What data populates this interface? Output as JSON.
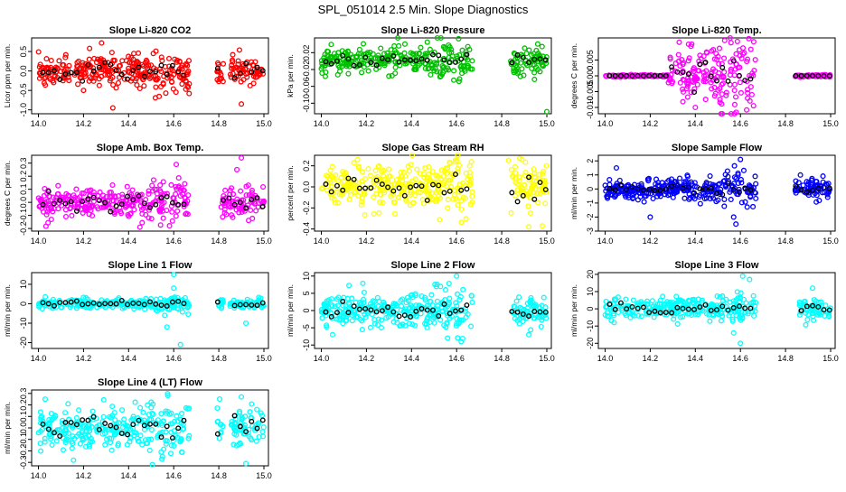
{
  "title": "SPL_051014  2.5 Min. Slope Diagnostics",
  "colors": {
    "red": "#ff0000",
    "green": "#00c000",
    "magenta": "#ff00ff",
    "yellow": "#ffff00",
    "blue": "#0000ff",
    "cyan": "#00ffff",
    "black": "#000000"
  },
  "chart_data": [
    {
      "type": "scatter",
      "title": "Slope Li-820 CO2",
      "ylabel": "Licor ppm per min.",
      "color": "#ff0000",
      "xlim": [
        13.97,
        15.02
      ],
      "ylim": [
        -1.1,
        0.85
      ],
      "xticks": [
        14.0,
        14.2,
        14.4,
        14.6,
        14.8,
        15.0
      ],
      "yticks": [
        -1.0,
        -0.5,
        0.0,
        0.5
      ],
      "ytick_labels": [
        "-1.0",
        "-0.5",
        "0.0",
        "0.5"
      ],
      "spread": 0.18,
      "outliers": [
        [
          14.28,
          0.72
        ],
        [
          14.33,
          -0.95
        ],
        [
          14.9,
          -0.85
        ],
        [
          14.2,
          -0.5
        ],
        [
          14.45,
          -0.45
        ]
      ],
      "gap": [
        14.67,
        14.78
      ],
      "gap2": [
        14.82,
        14.85
      ]
    },
    {
      "type": "scatter",
      "title": "Slope Li-820 Pressure",
      "ylabel": "kPa per min.",
      "color": "#00c000",
      "xlim": [
        13.97,
        15.02
      ],
      "ylim": [
        -0.125,
        0.055
      ],
      "xticks": [
        14.0,
        14.2,
        14.4,
        14.6,
        14.8,
        15.0
      ],
      "yticks": [
        -0.1,
        -0.06,
        -0.02,
        0.02
      ],
      "ytick_labels": [
        "-0.10",
        "-0.06",
        "-0.02",
        "0.02"
      ],
      "spread": 0.017,
      "outliers": [
        [
          14.47,
          0.045
        ],
        [
          15.0,
          -0.12
        ],
        [
          14.12,
          -0.03
        ],
        [
          14.42,
          -0.02
        ]
      ],
      "gap": [
        14.67,
        14.83
      ],
      "gap2": [
        14.83,
        14.84
      ]
    },
    {
      "type": "scatter",
      "title": "Slope Li-820 Temp.",
      "ylabel": "degrees C per min.",
      "color": "#ff00ff",
      "xlim": [
        13.97,
        15.02
      ],
      "ylim": [
        -0.012,
        0.012
      ],
      "xticks": [
        14.0,
        14.2,
        14.4,
        14.6,
        14.8,
        15.0
      ],
      "yticks": [
        -0.01,
        -0.005,
        0.0,
        0.005
      ],
      "ytick_labels": [
        "-0.010",
        "-0.005",
        "0.000",
        "0.005"
      ],
      "spread": 0.0045,
      "outliers": [
        [
          14.37,
          0.01
        ],
        [
          14.4,
          -0.01
        ]
      ],
      "gap": [
        14.67,
        14.83
      ],
      "gap2": [
        14.83,
        14.84
      ],
      "flat": [
        [
          14.0,
          14.28
        ],
        [
          14.83,
          15.0
        ]
      ]
    },
    {
      "type": "scatter",
      "title": "Slope Amb. Box Temp.",
      "ylabel": "degrees C per min.",
      "color": "#ff00ff",
      "xlim": [
        13.97,
        15.02
      ],
      "ylim": [
        -0.22,
        0.36
      ],
      "xticks": [
        14.0,
        14.2,
        14.4,
        14.6,
        14.8,
        15.0
      ],
      "yticks": [
        -0.2,
        -0.1,
        0.0,
        0.1,
        0.2,
        0.3
      ],
      "ytick_labels": [
        "-0.2",
        "-0.1",
        "0.0",
        "0.1",
        "0.2",
        "0.3"
      ],
      "spread": 0.055,
      "outliers": [
        [
          14.9,
          0.34
        ],
        [
          14.88,
          0.25
        ],
        [
          14.45,
          -0.19
        ]
      ],
      "gap": [
        14.67,
        14.8
      ],
      "gap2": [
        14.8,
        14.81
      ]
    },
    {
      "type": "scatter",
      "title": "Slope Gas Stream RH",
      "ylabel": "percent per min.",
      "color": "#ffff00",
      "xlim": [
        13.97,
        15.02
      ],
      "ylim": [
        -0.42,
        0.3
      ],
      "xticks": [
        14.0,
        14.2,
        14.4,
        14.6,
        14.8,
        15.0
      ],
      "yticks": [
        -0.4,
        -0.2,
        0.0,
        0.2
      ],
      "ytick_labels": [
        "-0.4",
        "-0.2",
        "0.0",
        "0.2"
      ],
      "spread": 0.1,
      "outliers": [
        [
          14.88,
          0.27
        ],
        [
          14.92,
          -0.38
        ],
        [
          14.98,
          -0.37
        ],
        [
          14.83,
          0.25
        ]
      ],
      "gap": [
        14.67,
        14.83
      ],
      "gap2": [
        14.83,
        14.84
      ]
    },
    {
      "type": "scatter",
      "title": "Slope Sample Flow",
      "ylabel": "ml/min per min.",
      "color": "#0000ff",
      "xlim": [
        13.97,
        15.02
      ],
      "ylim": [
        -3.0,
        2.4
      ],
      "xticks": [
        14.0,
        14.2,
        14.4,
        14.6,
        14.8,
        15.0
      ],
      "yticks": [
        -3,
        -2,
        -1,
        0,
        1,
        2
      ],
      "ytick_labels": [
        "-3",
        "-2",
        "-1",
        "0",
        "1",
        "2"
      ],
      "spread": 0.35,
      "outliers": [
        [
          14.58,
          -2.5
        ],
        [
          14.6,
          2.1
        ],
        [
          14.57,
          -2.0
        ],
        [
          14.2,
          -2.0
        ],
        [
          14.05,
          1.5
        ]
      ],
      "gap": [
        14.67,
        14.83
      ],
      "gap2": [
        14.83,
        14.84
      ]
    },
    {
      "type": "scatter",
      "title": "Slope Line 1 Flow",
      "ylabel": "ml/min per min.",
      "color": "#00ffff",
      "xlim": [
        13.97,
        15.02
      ],
      "ylim": [
        -23,
        16
      ],
      "xticks": [
        14.0,
        14.2,
        14.4,
        14.6,
        14.8,
        15.0
      ],
      "yticks": [
        -20,
        -10,
        0,
        10
      ],
      "ytick_labels": [
        "-20",
        "-10",
        "0",
        "10"
      ],
      "spread": 1.2,
      "outliers": [
        [
          14.6,
          15
        ],
        [
          14.63,
          -21
        ],
        [
          14.57,
          -12
        ],
        [
          14.6,
          8
        ],
        [
          14.92,
          -10
        ],
        [
          14.56,
          -6
        ]
      ],
      "gap": [
        14.67,
        14.78
      ],
      "gap2": [
        14.82,
        14.85
      ]
    },
    {
      "type": "scatter",
      "title": "Slope Line 2 Flow",
      "ylabel": "ml/min per min.",
      "color": "#00ffff",
      "xlim": [
        13.97,
        15.02
      ],
      "ylim": [
        -11,
        11
      ],
      "xticks": [
        14.0,
        14.2,
        14.4,
        14.6,
        14.8,
        15.0
      ],
      "yticks": [
        -10,
        -5,
        0,
        5,
        10
      ],
      "ytick_labels": [
        "-10",
        "-5",
        "0",
        "5",
        "10"
      ],
      "spread": 2.2,
      "outliers": [
        [
          14.6,
          10
        ],
        [
          14.62,
          -9
        ],
        [
          14.92,
          -7
        ],
        [
          14.05,
          -7
        ],
        [
          14.56,
          -8
        ]
      ],
      "gap": [
        14.67,
        14.83
      ],
      "gap2": [
        14.83,
        14.84
      ]
    },
    {
      "type": "scatter",
      "title": "Slope Line 3 Flow",
      "ylabel": "ml/min per min.",
      "color": "#00ffff",
      "xlim": [
        13.97,
        15.02
      ],
      "ylim": [
        -23,
        21
      ],
      "xticks": [
        14.0,
        14.2,
        14.4,
        14.6,
        14.8,
        15.0
      ],
      "yticks": [
        -20,
        -10,
        0,
        10,
        20
      ],
      "ytick_labels": [
        "-20",
        "-10",
        "0",
        "10",
        "20"
      ],
      "spread": 3,
      "outliers": [
        [
          14.61,
          19
        ],
        [
          14.6,
          -20
        ],
        [
          14.92,
          12
        ],
        [
          14.04,
          -8
        ],
        [
          14.57,
          -14
        ]
      ],
      "gap": [
        14.67,
        14.85
      ],
      "gap2": [
        14.85,
        14.86
      ]
    },
    {
      "type": "scatter",
      "title": "Slope Line 4 (LT) Flow",
      "ylabel": "ml/min per min.",
      "color": "#00ffff",
      "xlim": [
        13.97,
        15.02
      ],
      "ylim": [
        -0.33,
        0.33
      ],
      "xticks": [
        14.0,
        14.2,
        14.4,
        14.6,
        14.8,
        15.0
      ],
      "yticks": [
        -0.3,
        -0.2,
        -0.1,
        0.0,
        0.1,
        0.2,
        0.3
      ],
      "ytick_labels": [
        "-0.3",
        "-0.2",
        "-0.1",
        "0.0",
        "0.1",
        "0.2",
        "0.3"
      ],
      "spread": 0.09,
      "outliers": [
        [
          14.92,
          -0.31
        ],
        [
          14.9,
          0.27
        ],
        [
          14.03,
          0.25
        ],
        [
          14.55,
          -0.25
        ]
      ],
      "gap": [
        14.67,
        14.78
      ],
      "gap2": [
        14.82,
        14.85
      ]
    }
  ]
}
